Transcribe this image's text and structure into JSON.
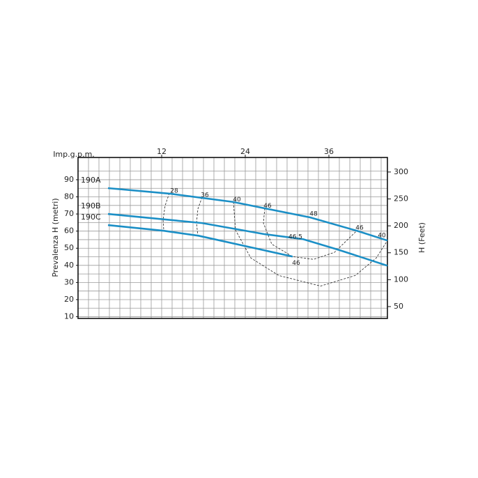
{
  "chart_data": {
    "type": "line",
    "x_label": "Imp.g.p.m.",
    "y_label": "Prevalenza H (metri)",
    "y2_label": "H (Feet)",
    "xlim": [
      0,
      44.4
    ],
    "xticks": [
      12,
      24,
      36
    ],
    "ylim": [
      9,
      103
    ],
    "yticks": [
      10,
      20,
      30,
      40,
      50,
      60,
      70,
      80,
      90
    ],
    "y2lim": [
      28,
      327
    ],
    "y2ticks": [
      50,
      100,
      150,
      200,
      250,
      300
    ],
    "grid": true,
    "x_grid_step": 1.5,
    "y_grid_step": 5,
    "series": [
      {
        "name": "190A",
        "color": "#1b8fc6",
        "x": [
          4.3,
          13.3,
          22.3,
          26.8,
          33.3,
          40,
          44.4
        ],
        "y": [
          85.1,
          81.8,
          77,
          73.3,
          68,
          60.2,
          54.5
        ]
      },
      {
        "name": "190B",
        "color": "#1b8fc6",
        "x": [
          4.3,
          17.8,
          26.8,
          32.3,
          37.3,
          44.4
        ],
        "y": [
          70,
          64.7,
          58.2,
          55.3,
          49.2,
          39.8
        ]
      },
      {
        "name": "190C",
        "color": "#1b8fc6",
        "x": [
          4.3,
          12.3,
          17.3,
          30.8
        ],
        "y": [
          63.5,
          60.2,
          57.3,
          45.1
        ]
      }
    ],
    "efficiency_curves": [
      {
        "x": [
          13.1,
          12.5,
          12.2,
          12.3
        ],
        "y": [
          82.2,
          74.9,
          66.7,
          60.6
        ]
      },
      {
        "x": [
          17.8,
          17.2,
          17,
          17.2
        ],
        "y": [
          79.8,
          72.9,
          64.7,
          57.3
        ]
      },
      {
        "x": [
          22.3,
          22.6,
          24.8,
          28.8,
          34.8,
          39.8,
          42.8,
          44.4
        ],
        "y": [
          77,
          60.6,
          44.3,
          34.1,
          27.9,
          34.1,
          44.3,
          54.5
        ]
      },
      {
        "x": [
          26.8,
          26.6,
          27.8,
          30.8,
          33.8,
          36.8,
          40
        ],
        "y": [
          73.3,
          64.7,
          52.4,
          45.1,
          43.5,
          47.6,
          60.2
        ]
      }
    ],
    "efficiency_labels": [
      {
        "text": "28",
        "x": 13.8,
        "y": 83.5
      },
      {
        "text": "36",
        "x": 18.2,
        "y": 81
      },
      {
        "text": "40",
        "x": 22.8,
        "y": 78.4
      },
      {
        "text": "46",
        "x": 27.2,
        "y": 74.7
      },
      {
        "text": "48",
        "x": 33.8,
        "y": 70
      },
      {
        "text": "46.5",
        "x": 31.2,
        "y": 56.6
      },
      {
        "text": "46",
        "x": 31.3,
        "y": 41.3
      },
      {
        "text": "46",
        "x": 40.4,
        "y": 61.8
      },
      {
        "text": "40",
        "x": 43.6,
        "y": 57.5
      }
    ]
  }
}
